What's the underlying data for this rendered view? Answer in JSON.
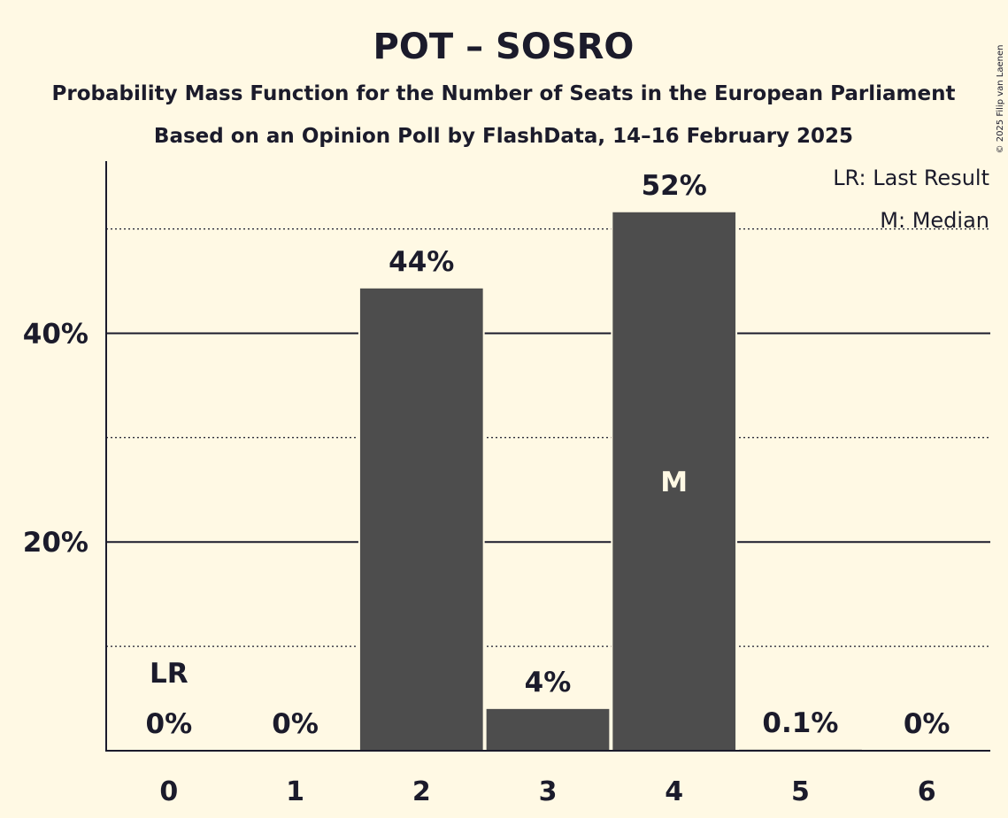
{
  "chart_data": {
    "type": "bar",
    "title": "POT – SOSRO",
    "subtitle_1": "Probability Mass Function for the Number of Seats in the European Parliament",
    "subtitle_2": "Based on an Opinion Poll by FlashData, 14–16 February 2025",
    "categories": [
      "0",
      "1",
      "2",
      "3",
      "4",
      "5",
      "6"
    ],
    "values": [
      0,
      0,
      44.3,
      4.0,
      51.6,
      0.1,
      0
    ],
    "value_labels": [
      "0%",
      "0%",
      "44%",
      "4%",
      "52%",
      "0.1%",
      "0%"
    ],
    "ylim": [
      0,
      56.5
    ],
    "y_major_ticks": [
      20,
      40
    ],
    "y_major_tick_labels": [
      "20%",
      "40%"
    ],
    "y_minor_ticks": [
      10,
      30,
      50
    ],
    "last_result_index": 0,
    "last_result_marker": "LR",
    "median_index": 4,
    "median_marker": "M",
    "legend": [
      "LR: Last Result",
      "M: Median"
    ],
    "legend_position": "top-right",
    "copyright": "© 2025 Filip van Laenen",
    "colors": {
      "background": "#fff9e4",
      "bar": "#4d4d4d",
      "text": "#1b1b2b",
      "median_text": "#fff9e4"
    }
  }
}
